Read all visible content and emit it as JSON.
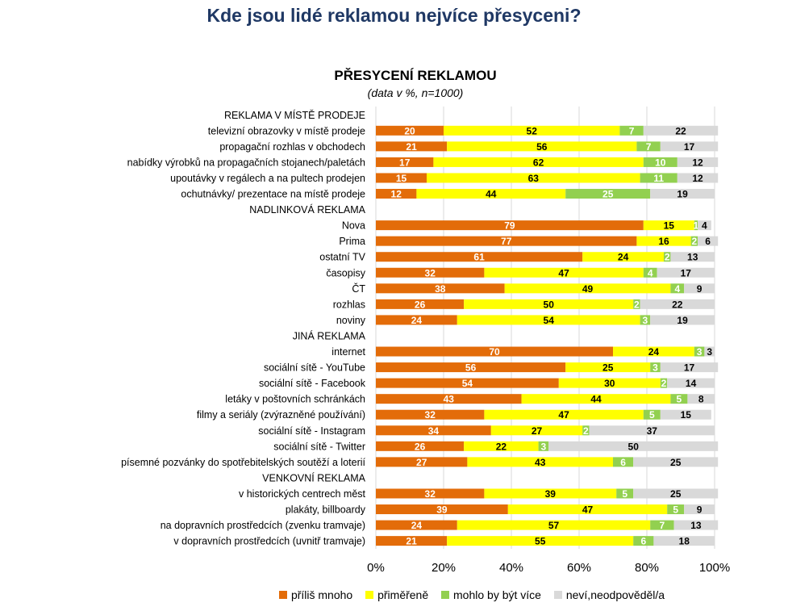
{
  "page_title": "Kde jsou lidé reklamou nejvíce přesyceni?",
  "colors": {
    "prilis_mnoho": "#e36c09",
    "primerene": "#ffff00",
    "mohlo_by_byt_vice": "#92d050",
    "nevi": "#d9d9d9",
    "title": "#1f3864"
  },
  "chart_data": {
    "type": "bar",
    "orientation": "horizontal",
    "stacked": "100%",
    "title": "PŘESYCENÍ REKLAMOU",
    "subtitle": "(data v %, n=1000)",
    "xlim": [
      0,
      100
    ],
    "x_ticks": [
      "0%",
      "20%",
      "40%",
      "60%",
      "80%",
      "100%"
    ],
    "grid": true,
    "legend_position": "bottom",
    "series": [
      {
        "name": "příliš mnoho",
        "color": "#e36c09"
      },
      {
        "name": "přiměřeně",
        "color": "#ffff00"
      },
      {
        "name": "mohlo by být více",
        "color": "#92d050"
      },
      {
        "name": "neví,neodpověděl/a",
        "color": "#d9d9d9"
      }
    ],
    "rows": [
      {
        "label": "REKLAMA V MÍSTĚ PRODEJE",
        "header": true
      },
      {
        "label": "televizní obrazovky v místě prodeje",
        "values": [
          20,
          52,
          7,
          22
        ]
      },
      {
        "label": "propagační rozhlas v obchodech",
        "values": [
          21,
          56,
          7,
          17
        ]
      },
      {
        "label": "nabídky výrobků na propagačních stojanech/paletách",
        "values": [
          17,
          62,
          10,
          12
        ]
      },
      {
        "label": "upoutávky v regálech a na pultech prodejen",
        "values": [
          15,
          63,
          11,
          12
        ]
      },
      {
        "label": "ochutnávky/ prezentace na místě prodeje",
        "values": [
          12,
          44,
          25,
          19
        ]
      },
      {
        "label": "NADLINKOVÁ REKLAMA",
        "header": true
      },
      {
        "label": "Nova",
        "values": [
          79,
          15,
          1,
          4
        ]
      },
      {
        "label": "Prima",
        "values": [
          77,
          16,
          2,
          6
        ]
      },
      {
        "label": "ostatní TV",
        "values": [
          61,
          24,
          2,
          13
        ]
      },
      {
        "label": "časopisy",
        "values": [
          32,
          47,
          4,
          17
        ]
      },
      {
        "label": "ČT",
        "values": [
          38,
          49,
          4,
          9
        ]
      },
      {
        "label": "rozhlas",
        "values": [
          26,
          50,
          2,
          22
        ]
      },
      {
        "label": "noviny",
        "values": [
          24,
          54,
          3,
          19
        ]
      },
      {
        "label": "JINÁ REKLAMA",
        "header": true
      },
      {
        "label": "internet",
        "values": [
          70,
          24,
          3,
          3
        ]
      },
      {
        "label": "sociální sítě - YouTube",
        "values": [
          56,
          25,
          3,
          17
        ]
      },
      {
        "label": "sociální sítě - Facebook",
        "values": [
          54,
          30,
          2,
          14
        ]
      },
      {
        "label": "letáky v poštovních schránkách",
        "values": [
          43,
          44,
          5,
          8
        ]
      },
      {
        "label": "filmy a seriály (zvýrazněné používání)",
        "values": [
          32,
          47,
          5,
          15
        ]
      },
      {
        "label": "sociální sítě - Instagram",
        "values": [
          34,
          27,
          2,
          37
        ]
      },
      {
        "label": "sociální sítě - Twitter",
        "values": [
          26,
          22,
          3,
          50
        ]
      },
      {
        "label": "písemné pozvánky do spotřebitelských soutěží a loterií",
        "values": [
          27,
          43,
          6,
          25
        ]
      },
      {
        "label": "VENKOVNÍ REKLAMA",
        "header": true
      },
      {
        "label": "v historických centrech měst",
        "values": [
          32,
          39,
          5,
          25
        ]
      },
      {
        "label": "plakáty, billboardy",
        "values": [
          39,
          47,
          5,
          9
        ]
      },
      {
        "label": "na dopravních prostředcích (zvenku tramvaje)",
        "values": [
          24,
          57,
          7,
          13
        ]
      },
      {
        "label": "v dopravních prostředcích (uvnitř tramvaje)",
        "values": [
          21,
          55,
          6,
          18
        ]
      }
    ]
  }
}
